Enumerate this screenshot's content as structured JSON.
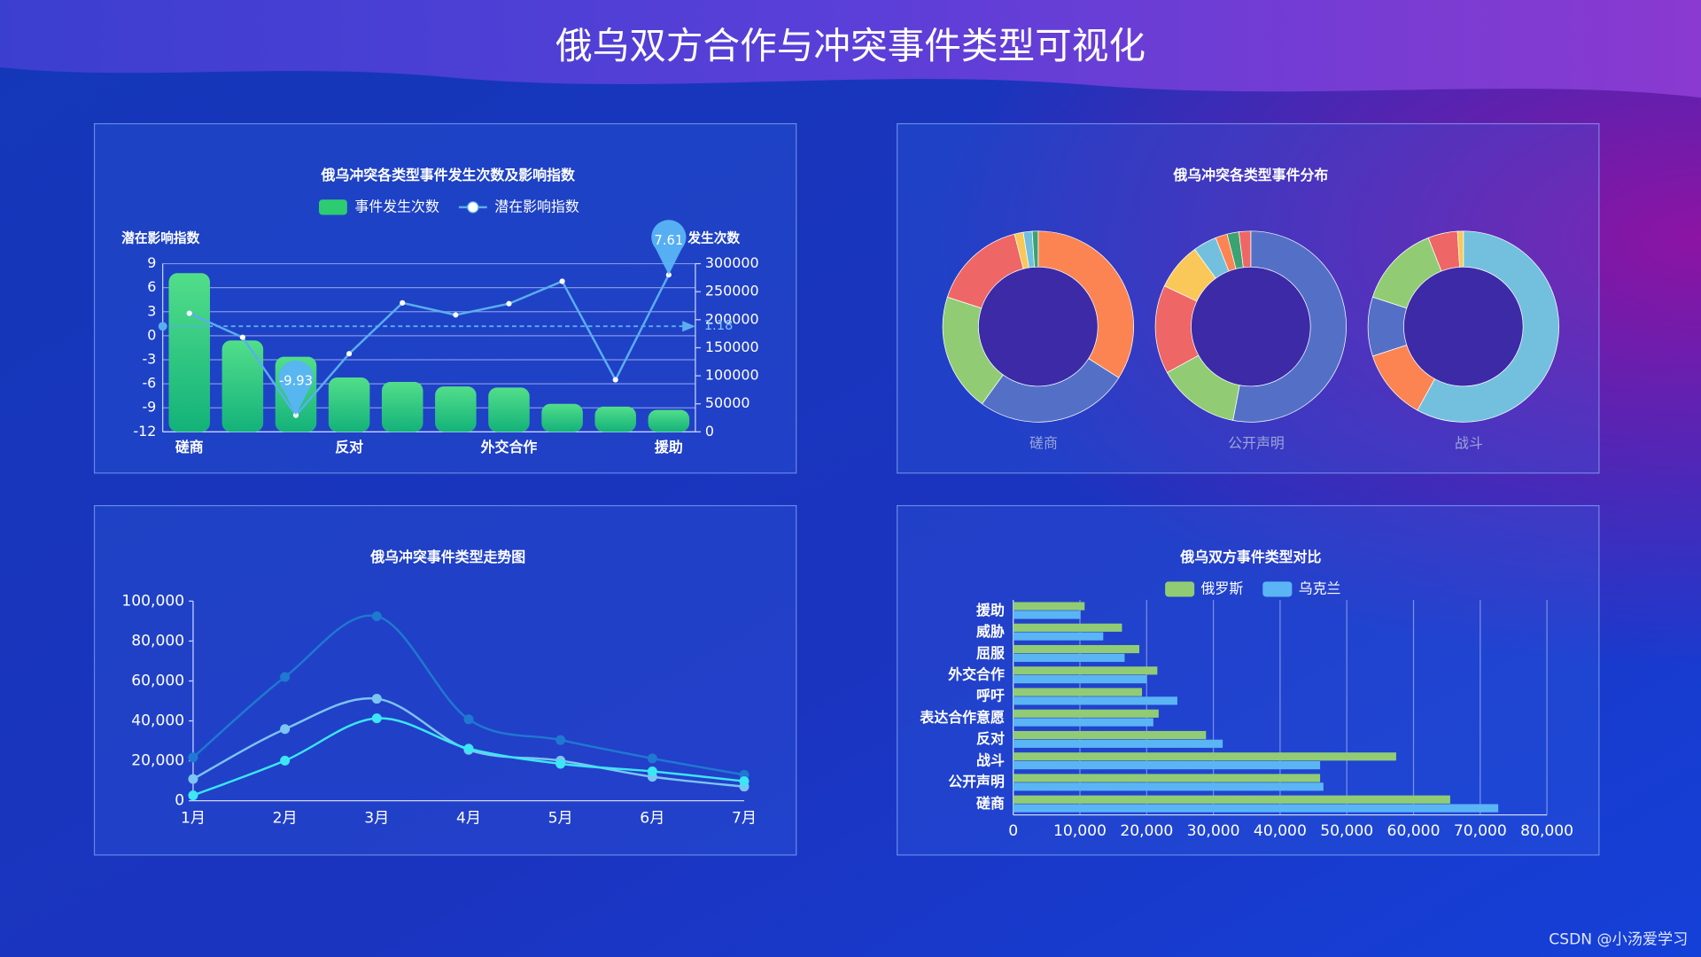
{
  "page_title": "俄乌双方合作与冲突事件类型可视化",
  "watermark": "CSDN @小汤爱学习",
  "chart_data": [
    {
      "type": "combo",
      "title": "俄乌冲突各类型事件发生次数及影响指数",
      "categories": [
        "磋商",
        null,
        null,
        "反对",
        null,
        null,
        "外交合作",
        null,
        null,
        "援助"
      ],
      "y_label": "潜在影响指数",
      "y2_label": "发生次数",
      "ylim": [
        -12,
        9
      ],
      "yticks": [
        9,
        6,
        3,
        0,
        -3,
        -6,
        -9,
        -12
      ],
      "y2lim": [
        0,
        300000
      ],
      "y2ticks": [
        300000,
        250000,
        200000,
        150000,
        100000,
        50000,
        0
      ],
      "grid": true,
      "mark_line": 1.18,
      "series": [
        {
          "name": "事件发生次数",
          "type": "bar",
          "axis": "y2",
          "color": "#2ecc71",
          "values": [
            283000,
            163000,
            134000,
            97000,
            89000,
            81000,
            79000,
            50000,
            45000,
            39000
          ]
        },
        {
          "name": "潜在影响指数",
          "type": "line",
          "color": "#5aaef0",
          "values": [
            2.8,
            -0.2,
            -9.93,
            -2.25,
            4.1,
            2.6,
            4.0,
            6.8,
            -5.5,
            7.61
          ]
        }
      ]
    },
    {
      "type": "pie",
      "title": "俄乌冲突各类型事件分布",
      "pies": [
        {
          "name": "磋商",
          "values": [
            34,
            26,
            20,
            16,
            1.5,
            1.5,
            1
          ],
          "colors": [
            "#fc8452",
            "#5470c6",
            "#91cc75",
            "#ee6666",
            "#fac858",
            "#73c0de",
            "#3ba272"
          ]
        },
        {
          "name": "公开声明",
          "values": [
            53,
            14,
            15,
            8,
            4,
            2,
            2,
            2
          ],
          "colors": [
            "#5470c6",
            "#91cc75",
            "#ee6666",
            "#fac858",
            "#73c0de",
            "#fc8452",
            "#3ba272",
            "#ee6666"
          ]
        },
        {
          "name": "战斗",
          "values": [
            58,
            12,
            10,
            14,
            5,
            1
          ],
          "colors": [
            "#73c0de",
            "#fc8452",
            "#5470c6",
            "#91cc75",
            "#ee6666",
            "#fac858"
          ]
        }
      ]
    },
    {
      "type": "line",
      "title": "俄乌冲突事件类型走势图",
      "categories": [
        "1月",
        "2月",
        "3月",
        "4月",
        "5月",
        "6月",
        "7月"
      ],
      "ylim": [
        0,
        100000
      ],
      "yticks": [
        0,
        {
          "value": 20000,
          "label": "20,000"
        },
        {
          "value": 40000,
          "label": "40,000"
        },
        {
          "value": 60000,
          "label": "60,000"
        },
        {
          "value": 80000,
          "label": "80,000"
        },
        {
          "value": 100000,
          "label": "100,000"
        }
      ],
      "series": [
        {
          "color": "#1f78d1",
          "values": [
            21700,
            62000,
            92400,
            40800,
            30400,
            21200,
            13000
          ]
        },
        {
          "color": "#7cc4f2",
          "values": [
            10900,
            35900,
            51100,
            25500,
            20100,
            12000,
            7100
          ]
        },
        {
          "color": "#3ce6f5",
          "values": [
            2700,
            20100,
            41300,
            26100,
            18500,
            14700,
            9800
          ]
        }
      ]
    },
    {
      "type": "bar",
      "orientation": "horizontal",
      "title": "俄乌双方事件类型对比",
      "categories": [
        "援助",
        "威胁",
        "屈服",
        "外交合作",
        "呼吁",
        "表达合作意愿",
        "反对",
        "战斗",
        "公开声明",
        "磋商"
      ],
      "xlim": [
        0,
        80000
      ],
      "xticks": [
        0,
        {
          "value": 10000,
          "label": "10,000"
        },
        {
          "value": 20000,
          "label": "20,000"
        },
        {
          "value": 30000,
          "label": "30,000"
        },
        {
          "value": 40000,
          "label": "40,000"
        },
        {
          "value": 50000,
          "label": "50,000"
        },
        {
          "value": 60000,
          "label": "60,000"
        },
        {
          "value": 70000,
          "label": "70,000"
        },
        {
          "value": 80000,
          "label": "80,000"
        }
      ],
      "grid": true,
      "series": [
        {
          "name": "俄罗斯",
          "color": "#91cc75",
          "values": [
            10700,
            16300,
            18900,
            21600,
            19300,
            21800,
            28900,
            57400,
            46000,
            65500
          ]
        },
        {
          "name": "乌克兰",
          "color": "#5bb5f5",
          "values": [
            10100,
            13500,
            16700,
            20000,
            24600,
            21000,
            31400,
            46000,
            46500,
            72700
          ]
        }
      ]
    }
  ]
}
